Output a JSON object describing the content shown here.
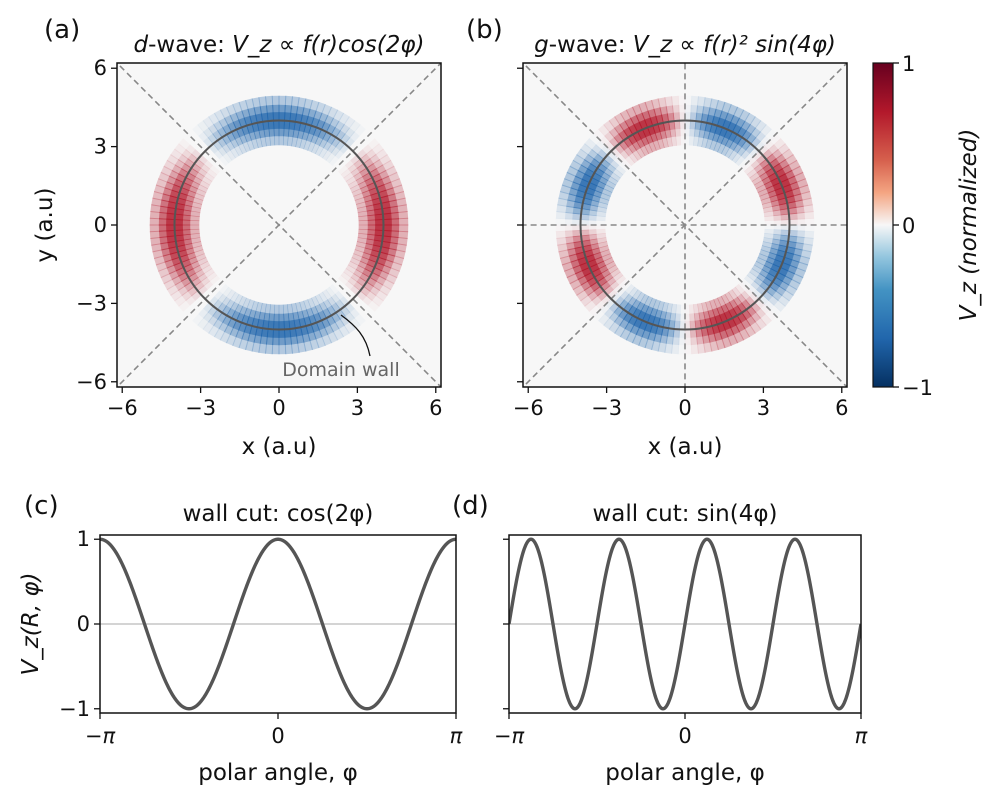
{
  "chart_data": [
    {
      "panel": "(a)",
      "type": "heatmap",
      "title_prefix": "d",
      "title_main": "-wave: ",
      "title_formula": "V_z ∝ f(r)cos(2φ)",
      "xlabel": "x (a.u)",
      "ylabel": "y (a.u)",
      "xlim": [
        -6.2,
        6.2
      ],
      "ylim": [
        -6.2,
        6.2
      ],
      "xticks": [
        -6,
        -3,
        0,
        3,
        6
      ],
      "yticks": [
        -6,
        -3,
        0,
        3,
        6
      ],
      "field": "cos(2φ) profile on a ring of radius 4",
      "ring_radius": 4,
      "guide_lines": [
        "y = x",
        "y = -x"
      ],
      "annotation": "Domain wall",
      "colormap": "RdBu_r",
      "clim": [
        -1,
        1
      ]
    },
    {
      "panel": "(b)",
      "type": "heatmap",
      "title_prefix": "g",
      "title_main": "-wave: ",
      "title_formula": "V_z ∝ f(r)² sin(4φ)",
      "xlabel": "x (a.u)",
      "ylabel": "",
      "xlim": [
        -6.2,
        6.2
      ],
      "ylim": [
        -6.2,
        6.2
      ],
      "xticks": [
        -6,
        -3,
        0,
        3,
        6
      ],
      "yticks": [
        -6,
        -3,
        0,
        3,
        6
      ],
      "field": "sin(4φ) profile on a ring of radius 4",
      "ring_radius": 4,
      "guide_lines": [
        "y = x",
        "y = -x",
        "x = 0",
        "y = 0"
      ],
      "colormap": "RdBu_r",
      "clim": [
        -1,
        1
      ],
      "colorbar": {
        "label": "V_z (normalized)",
        "ticks": [
          1,
          0,
          -1
        ],
        "tick_labels": [
          "1",
          "0",
          "−1"
        ],
        "colors": {
          "positive": "#67001f",
          "zero": "#f7f7f7",
          "negative": "#053061"
        }
      }
    },
    {
      "panel": "(c)",
      "type": "line",
      "title": "wall cut: cos(2φ)",
      "function": "cos(2φ)",
      "xlabel": "polar angle, φ",
      "ylabel": "V_z(R, φ)",
      "xlim": [
        -3.1416,
        3.1416
      ],
      "ylim": [
        -1.05,
        1.05
      ],
      "xtick_labels": [
        "−π",
        "0",
        "π"
      ],
      "ytick_labels": [
        "1",
        "0",
        "−1"
      ],
      "series": [
        {
          "x": [
            -3.1416,
            -2.7489,
            -2.3562,
            -1.9635,
            -1.5708,
            -1.1781,
            -0.7854,
            -0.3927,
            0,
            0.3927,
            0.7854,
            1.1781,
            1.5708,
            1.9635,
            2.3562,
            2.7489,
            3.1416
          ],
          "y": [
            1,
            0.707,
            0,
            -0.707,
            -1,
            -0.707,
            0,
            0.707,
            1,
            0.707,
            0,
            -0.707,
            -1,
            -0.707,
            0,
            0.707,
            1
          ]
        }
      ],
      "line_color": "#555555",
      "zero_line": true
    },
    {
      "panel": "(d)",
      "type": "line",
      "title": "wall cut: sin(4φ)",
      "function": "sin(4φ)",
      "xlabel": "polar angle, φ",
      "ylabel": "",
      "xlim": [
        -3.1416,
        3.1416
      ],
      "ylim": [
        -1.05,
        1.05
      ],
      "xtick_labels": [
        "−π",
        "0",
        "π"
      ],
      "ytick_labels": [],
      "series": [
        {
          "x": [
            -3.1416,
            -2.9452,
            -2.7489,
            -2.5525,
            -2.3562,
            -2.1598,
            -1.9635,
            -1.7671,
            -1.5708,
            -1.3744,
            -1.1781,
            -0.9817,
            -0.7854,
            -0.589,
            -0.3927,
            -0.1963,
            0,
            0.1963,
            0.3927,
            0.589,
            0.7854,
            0.9817,
            1.1781,
            1.3744,
            1.5708,
            1.7671,
            1.9635,
            2.1598,
            2.3562,
            2.5525,
            2.7489,
            2.9452,
            3.1416
          ],
          "y": [
            0,
            0.707,
            1,
            0.707,
            0,
            -0.707,
            -1,
            -0.707,
            0,
            0.707,
            1,
            0.707,
            0,
            -0.707,
            -1,
            -0.707,
            0,
            0.707,
            1,
            0.707,
            0,
            -0.707,
            -1,
            -0.707,
            0,
            0.707,
            1,
            0.707,
            0,
            -0.707,
            -1,
            -0.707,
            0
          ]
        }
      ],
      "line_color": "#555555",
      "zero_line": true
    }
  ]
}
